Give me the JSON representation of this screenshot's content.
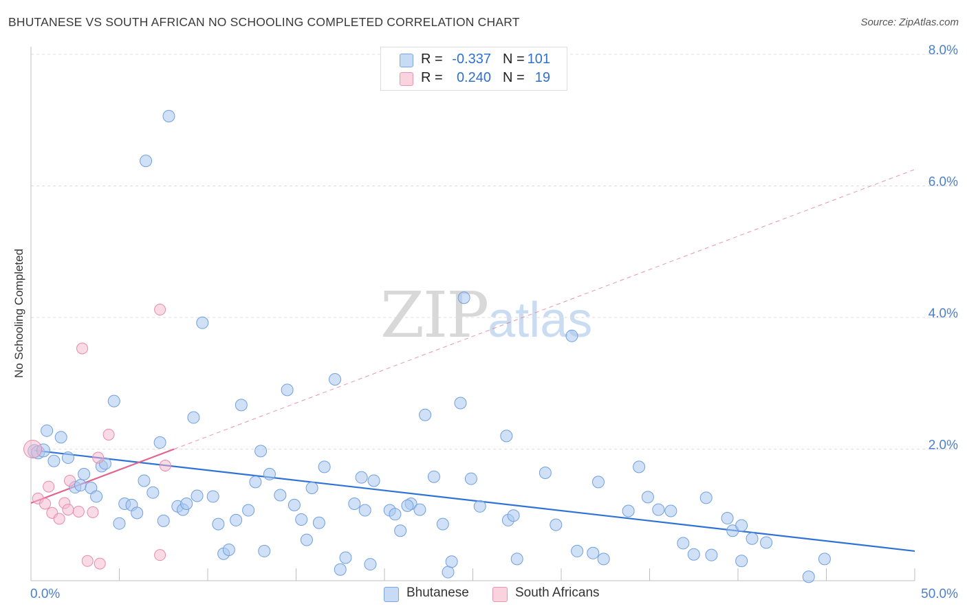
{
  "title": "BHUTANESE VS SOUTH AFRICAN NO SCHOOLING COMPLETED CORRELATION CHART",
  "source": "Source: ZipAtlas.com",
  "watermark": {
    "zip": "ZIP",
    "atlas": "atlas"
  },
  "legend": {
    "rows": [
      {
        "r_label": "R =",
        "r_value": "-0.337",
        "n_label": "N =",
        "n_value": "101",
        "color": "#a9c8f0"
      },
      {
        "r_label": "R =",
        "r_value": "0.240",
        "n_label": "N =",
        "n_value": "19",
        "color": "#f5b8cb"
      }
    ]
  },
  "bottom_legend": [
    {
      "label": "Bhutanese",
      "color": "#a9c8f0"
    },
    {
      "label": "South Africans",
      "color": "#f5b8cb"
    }
  ],
  "chart_data": {
    "type": "scatter",
    "title": "BHUTANESE VS SOUTH AFRICAN NO SCHOOLING COMPLETED CORRELATION CHART",
    "xlabel": "",
    "ylabel": "No Schooling Completed",
    "xlim": [
      0,
      50
    ],
    "ylim": [
      0,
      8.3
    ],
    "x_tick_labels": [
      "0.0%",
      "50.0%"
    ],
    "y_ticks": [
      2,
      4,
      6,
      8
    ],
    "y_tick_labels": [
      "2.0%",
      "4.0%",
      "6.0%",
      "8.0%"
    ],
    "grid": true,
    "legend_position": "top-center",
    "colors": {
      "bhutanese": "#a9c8f0",
      "bhutanese_edge": "#6f9fe0",
      "bhutanese_line": "#2f72d6",
      "south_african": "#f5b8cb",
      "south_african_edge": "#e88aa8",
      "south_african_line": "#e2648e"
    },
    "series": [
      {
        "name": "Bhutanese",
        "points": [
          [
            0.2,
            1.97
          ],
          [
            0.4,
            1.95
          ],
          [
            0.7,
            1.98
          ],
          [
            0.9,
            2.28
          ],
          [
            1.3,
            1.82
          ],
          [
            1.7,
            2.18
          ],
          [
            2.1,
            1.87
          ],
          [
            2.5,
            1.42
          ],
          [
            2.8,
            1.45
          ],
          [
            3.0,
            1.62
          ],
          [
            3.4,
            1.41
          ],
          [
            3.7,
            1.28
          ],
          [
            4.0,
            1.74
          ],
          [
            4.2,
            1.78
          ],
          [
            4.7,
            2.73
          ],
          [
            5.0,
            0.87
          ],
          [
            5.3,
            1.17
          ],
          [
            5.7,
            1.15
          ],
          [
            6.0,
            1.03
          ],
          [
            6.4,
            1.52
          ],
          [
            6.5,
            6.38
          ],
          [
            6.9,
            1.34
          ],
          [
            7.3,
            2.1
          ],
          [
            7.5,
            0.91
          ],
          [
            7.8,
            7.06
          ],
          [
            8.3,
            1.13
          ],
          [
            8.6,
            1.08
          ],
          [
            8.8,
            1.17
          ],
          [
            9.2,
            2.48
          ],
          [
            9.4,
            1.29
          ],
          [
            9.7,
            3.92
          ],
          [
            10.3,
            1.28
          ],
          [
            10.6,
            0.86
          ],
          [
            10.9,
            0.41
          ],
          [
            11.2,
            0.47
          ],
          [
            11.6,
            0.92
          ],
          [
            11.9,
            2.67
          ],
          [
            12.3,
            1.07
          ],
          [
            12.7,
            1.5
          ],
          [
            13.0,
            1.97
          ],
          [
            13.2,
            0.45
          ],
          [
            13.5,
            1.62
          ],
          [
            14.1,
            1.3
          ],
          [
            14.5,
            2.9
          ],
          [
            14.9,
            1.15
          ],
          [
            15.3,
            0.93
          ],
          [
            15.6,
            0.62
          ],
          [
            15.9,
            1.41
          ],
          [
            16.3,
            0.88
          ],
          [
            16.6,
            1.73
          ],
          [
            17.2,
            3.06
          ],
          [
            17.5,
            0.17
          ],
          [
            17.8,
            0.35
          ],
          [
            18.3,
            1.17
          ],
          [
            18.7,
            1.57
          ],
          [
            18.9,
            1.07
          ],
          [
            19.2,
            0.25
          ],
          [
            19.4,
            1.52
          ],
          [
            20.3,
            1.07
          ],
          [
            20.6,
            1.01
          ],
          [
            20.9,
            0.76
          ],
          [
            21.5,
            1.17
          ],
          [
            21.3,
            1.14
          ],
          [
            22.0,
            1.08
          ],
          [
            22.3,
            2.52
          ],
          [
            22.8,
            1.58
          ],
          [
            23.3,
            0.86
          ],
          [
            23.6,
            0.13
          ],
          [
            23.8,
            0.29
          ],
          [
            24.3,
            2.7
          ],
          [
            24.5,
            4.3
          ],
          [
            24.9,
            1.55
          ],
          [
            25.4,
            1.13
          ],
          [
            26.9,
            2.2
          ],
          [
            27.0,
            0.92
          ],
          [
            27.3,
            0.99
          ],
          [
            27.5,
            0.33
          ],
          [
            29.1,
            1.64
          ],
          [
            29.7,
            0.85
          ],
          [
            30.6,
            3.72
          ],
          [
            30.9,
            0.45
          ],
          [
            31.8,
            0.42
          ],
          [
            32.1,
            1.5
          ],
          [
            32.4,
            0.33
          ],
          [
            33.8,
            1.06
          ],
          [
            34.4,
            1.73
          ],
          [
            34.9,
            1.27
          ],
          [
            35.5,
            1.08
          ],
          [
            36.2,
            1.06
          ],
          [
            36.9,
            0.57
          ],
          [
            37.5,
            0.4
          ],
          [
            38.2,
            1.26
          ],
          [
            38.5,
            0.39
          ],
          [
            39.4,
            0.95
          ],
          [
            39.7,
            0.76
          ],
          [
            40.2,
            0.3
          ],
          [
            40.2,
            0.84
          ],
          [
            40.8,
            0.64
          ],
          [
            41.6,
            0.58
          ],
          [
            44.0,
            0.06
          ],
          [
            44.9,
            0.33
          ]
        ],
        "trend": {
          "x": [
            0.2,
            50
          ],
          "y": [
            1.98,
            0.45
          ]
        }
      },
      {
        "name": "South Africans",
        "points": [
          [
            0.1,
            2.0
          ],
          [
            0.4,
            1.25
          ],
          [
            0.8,
            1.17
          ],
          [
            1.0,
            1.43
          ],
          [
            1.2,
            1.03
          ],
          [
            1.6,
            0.94
          ],
          [
            1.9,
            1.18
          ],
          [
            2.1,
            1.08
          ],
          [
            2.2,
            1.52
          ],
          [
            2.7,
            1.05
          ],
          [
            2.9,
            3.53
          ],
          [
            3.2,
            0.3
          ],
          [
            3.5,
            1.04
          ],
          [
            3.8,
            1.87
          ],
          [
            3.9,
            0.26
          ],
          [
            4.4,
            2.22
          ],
          [
            7.3,
            4.12
          ],
          [
            7.3,
            0.39
          ],
          [
            7.6,
            1.75
          ]
        ],
        "trend": {
          "x": [
            0,
            8.1
          ],
          "y": [
            1.18,
            2.0
          ]
        },
        "trend_extension": {
          "x": [
            8.1,
            50
          ],
          "y": [
            2.0,
            6.25
          ]
        }
      }
    ]
  }
}
